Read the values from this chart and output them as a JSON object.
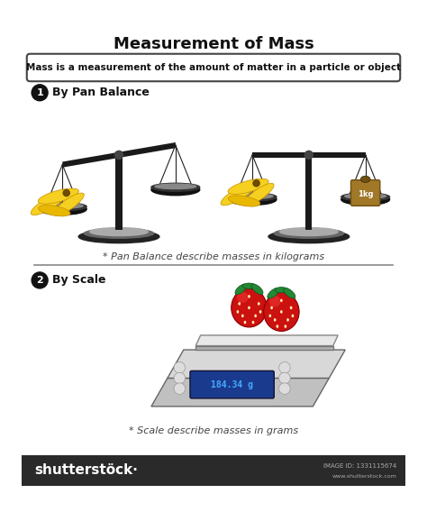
{
  "title": "Measurement of Mass",
  "subtitle": "Mass is a measurement of the amount of matter in a particle or object",
  "section1_title": "By Pan Balance",
  "section1_note": "* Pan Balance describe masses in kilograms",
  "section2_title": "By Scale",
  "section2_note": "* Scale describe masses in grams",
  "scale_display": "184.34 g",
  "weight_label": "1kg",
  "bg_color": "#ffffff",
  "title_color": "#111111",
  "banana_yellow": "#f5d020",
  "banana_mid": "#e8b800",
  "banana_dark": "#c89000",
  "banana_tip": "#6b4c00",
  "pan_dark": "#1a1a1a",
  "pan_gray": "#555555",
  "base_dark": "#222222",
  "base_mid": "#666666",
  "base_light": "#aaaaaa",
  "scale_body_light": "#c8c8c8",
  "scale_body_dark": "#888888",
  "scale_display_bg": "#1a3a8e",
  "scale_display_text": "#44aaff",
  "weight_body": "#a07828",
  "weight_top": "#705010",
  "strawberry_red": "#cc1111",
  "strawberry_bright": "#ee3333",
  "strawberry_seed": "#ffeeaa",
  "leaf_green": "#228833",
  "shutter_bg": "#2a2a2a",
  "shutter_text": "#ffffff"
}
